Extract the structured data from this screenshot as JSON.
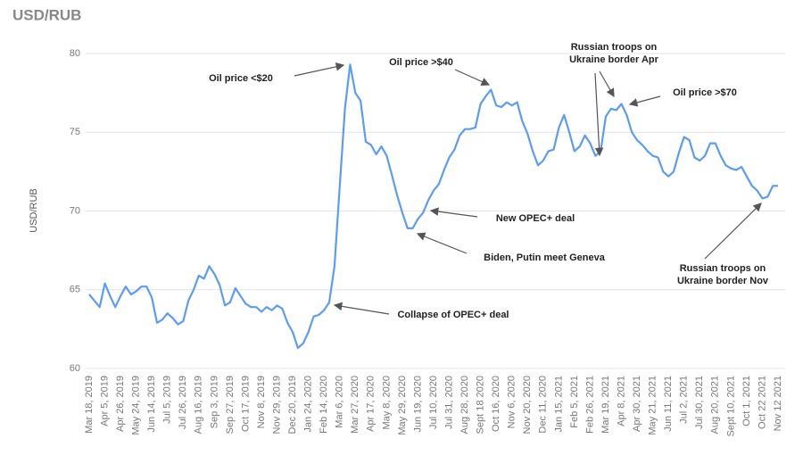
{
  "chart_data": {
    "type": "line",
    "title": "USD/RUB",
    "y_label": "USD/RUB",
    "categories": [
      "Mar 18, 2019",
      null,
      null,
      "Apr 5, 2019",
      null,
      null,
      "Apr 26, 2019",
      null,
      null,
      "May 24, 2019",
      null,
      null,
      "Jun 14, 2019",
      null,
      null,
      "Jul 5, 2019",
      null,
      null,
      "Jul 26, 2019",
      null,
      null,
      "Aug 16, 2019",
      null,
      null,
      "Sep 3, 2019",
      null,
      null,
      "Sep 27, 2019",
      null,
      null,
      "Oct 17, 2019",
      null,
      null,
      "Nov 8, 2019",
      null,
      null,
      "Nov 29, 2019",
      null,
      null,
      "Dec 20, 2019",
      null,
      null,
      "Jan 24, 2020",
      null,
      null,
      "Feb 14, 2020",
      null,
      null,
      "Mar 6, 2020",
      null,
      null,
      "Mar 27, 2020",
      null,
      null,
      "Apr 17, 2020",
      null,
      null,
      "May 8, 2020",
      null,
      null,
      "May 29, 2020",
      null,
      null,
      "Jun 19, 2020",
      null,
      null,
      "Jul 10, 2020",
      null,
      null,
      "Jul 31, 2020",
      null,
      null,
      "Aug 28, 2020",
      null,
      null,
      "Sept 18 2020",
      null,
      null,
      "Oct 16, 2020",
      null,
      null,
      "Nov 6, 2020",
      null,
      null,
      "Nov 20, 2020",
      null,
      null,
      "Dec 11, 2020",
      null,
      null,
      "Jan 15, 2021",
      null,
      null,
      "Feb 5, 2021",
      null,
      null,
      "Feb 26, 2021",
      null,
      null,
      "Mar 19, 2021",
      null,
      null,
      "Apr 8, 2021",
      null,
      null,
      "Apr 30, 2021",
      null,
      null,
      "May 21, 2021",
      null,
      null,
      "Jun 11, 2021",
      null,
      null,
      "Jul 2, 2021",
      null,
      null,
      "Jul 30, 2021",
      null,
      null,
      "Aug 20, 2021",
      null,
      null,
      "Sept 10, 2021",
      null,
      null,
      "Oct 1, 2021",
      null,
      null,
      "Oct 22 2021",
      null,
      null,
      "Nov 12 2021"
    ],
    "series": [
      {
        "name": "USD/RUB",
        "color": "#5b9cf6",
        "values": [
          64.7,
          64.3,
          63.9,
          65.4,
          64.6,
          63.9,
          64.6,
          65.2,
          64.7,
          64.9,
          65.2,
          65.2,
          64.5,
          62.9,
          63.1,
          63.5,
          63.2,
          62.8,
          63.0,
          64.3,
          65.0,
          65.9,
          65.7,
          66.5,
          66.0,
          65.3,
          64.0,
          64.2,
          65.1,
          64.6,
          64.1,
          63.9,
          63.9,
          63.6,
          63.9,
          63.7,
          64.0,
          63.8,
          62.9,
          62.3,
          61.3,
          61.6,
          62.3,
          63.3,
          63.4,
          63.7,
          64.2,
          66.5,
          71.5,
          76.5,
          79.3,
          77.5,
          77.0,
          74.4,
          74.2,
          73.6,
          74.1,
          73.5,
          72.3,
          71.0,
          69.9,
          68.9,
          68.9,
          69.5,
          69.9,
          70.7,
          71.3,
          71.7,
          72.6,
          73.4,
          73.9,
          74.8,
          75.2,
          75.2,
          75.3,
          76.8,
          77.3,
          77.7,
          76.7,
          76.6,
          76.9,
          76.7,
          76.9,
          75.7,
          74.9,
          73.8,
          72.9,
          73.2,
          73.8,
          73.9,
          75.3,
          76.1,
          75.0,
          73.8,
          74.1,
          74.8,
          74.3,
          73.5,
          73.8,
          76.0,
          76.5,
          76.4,
          76.8,
          76.1,
          75.0,
          74.5,
          74.2,
          73.8,
          73.5,
          73.4,
          72.5,
          72.2,
          72.5,
          73.7,
          74.7,
          74.5,
          73.4,
          73.2,
          73.5,
          74.3,
          74.3,
          73.5,
          72.9,
          72.7,
          72.6,
          72.8,
          72.2,
          71.6,
          71.3,
          70.8,
          70.9,
          71.6,
          71.6
        ]
      }
    ],
    "ylim": [
      60,
      80
    ],
    "yticks": [
      60,
      65,
      70,
      75,
      80
    ],
    "grid": true,
    "annotations": [
      {
        "lines": [
          "Oil price <$20"
        ]
      },
      {
        "lines": [
          "Oil price >$40"
        ]
      },
      {
        "lines": [
          "Russian troops on",
          "Ukraine border Apr"
        ]
      },
      {
        "lines": [
          "Oil price >$70"
        ]
      },
      {
        "lines": [
          "New OPEC+ deal"
        ]
      },
      {
        "lines": [
          "Biden, Putin meet Geneva"
        ]
      },
      {
        "lines": [
          "Collapse of OPEC+ deal"
        ]
      },
      {
        "lines": [
          "Russian troops on",
          "Ukraine border Nov"
        ]
      }
    ]
  }
}
